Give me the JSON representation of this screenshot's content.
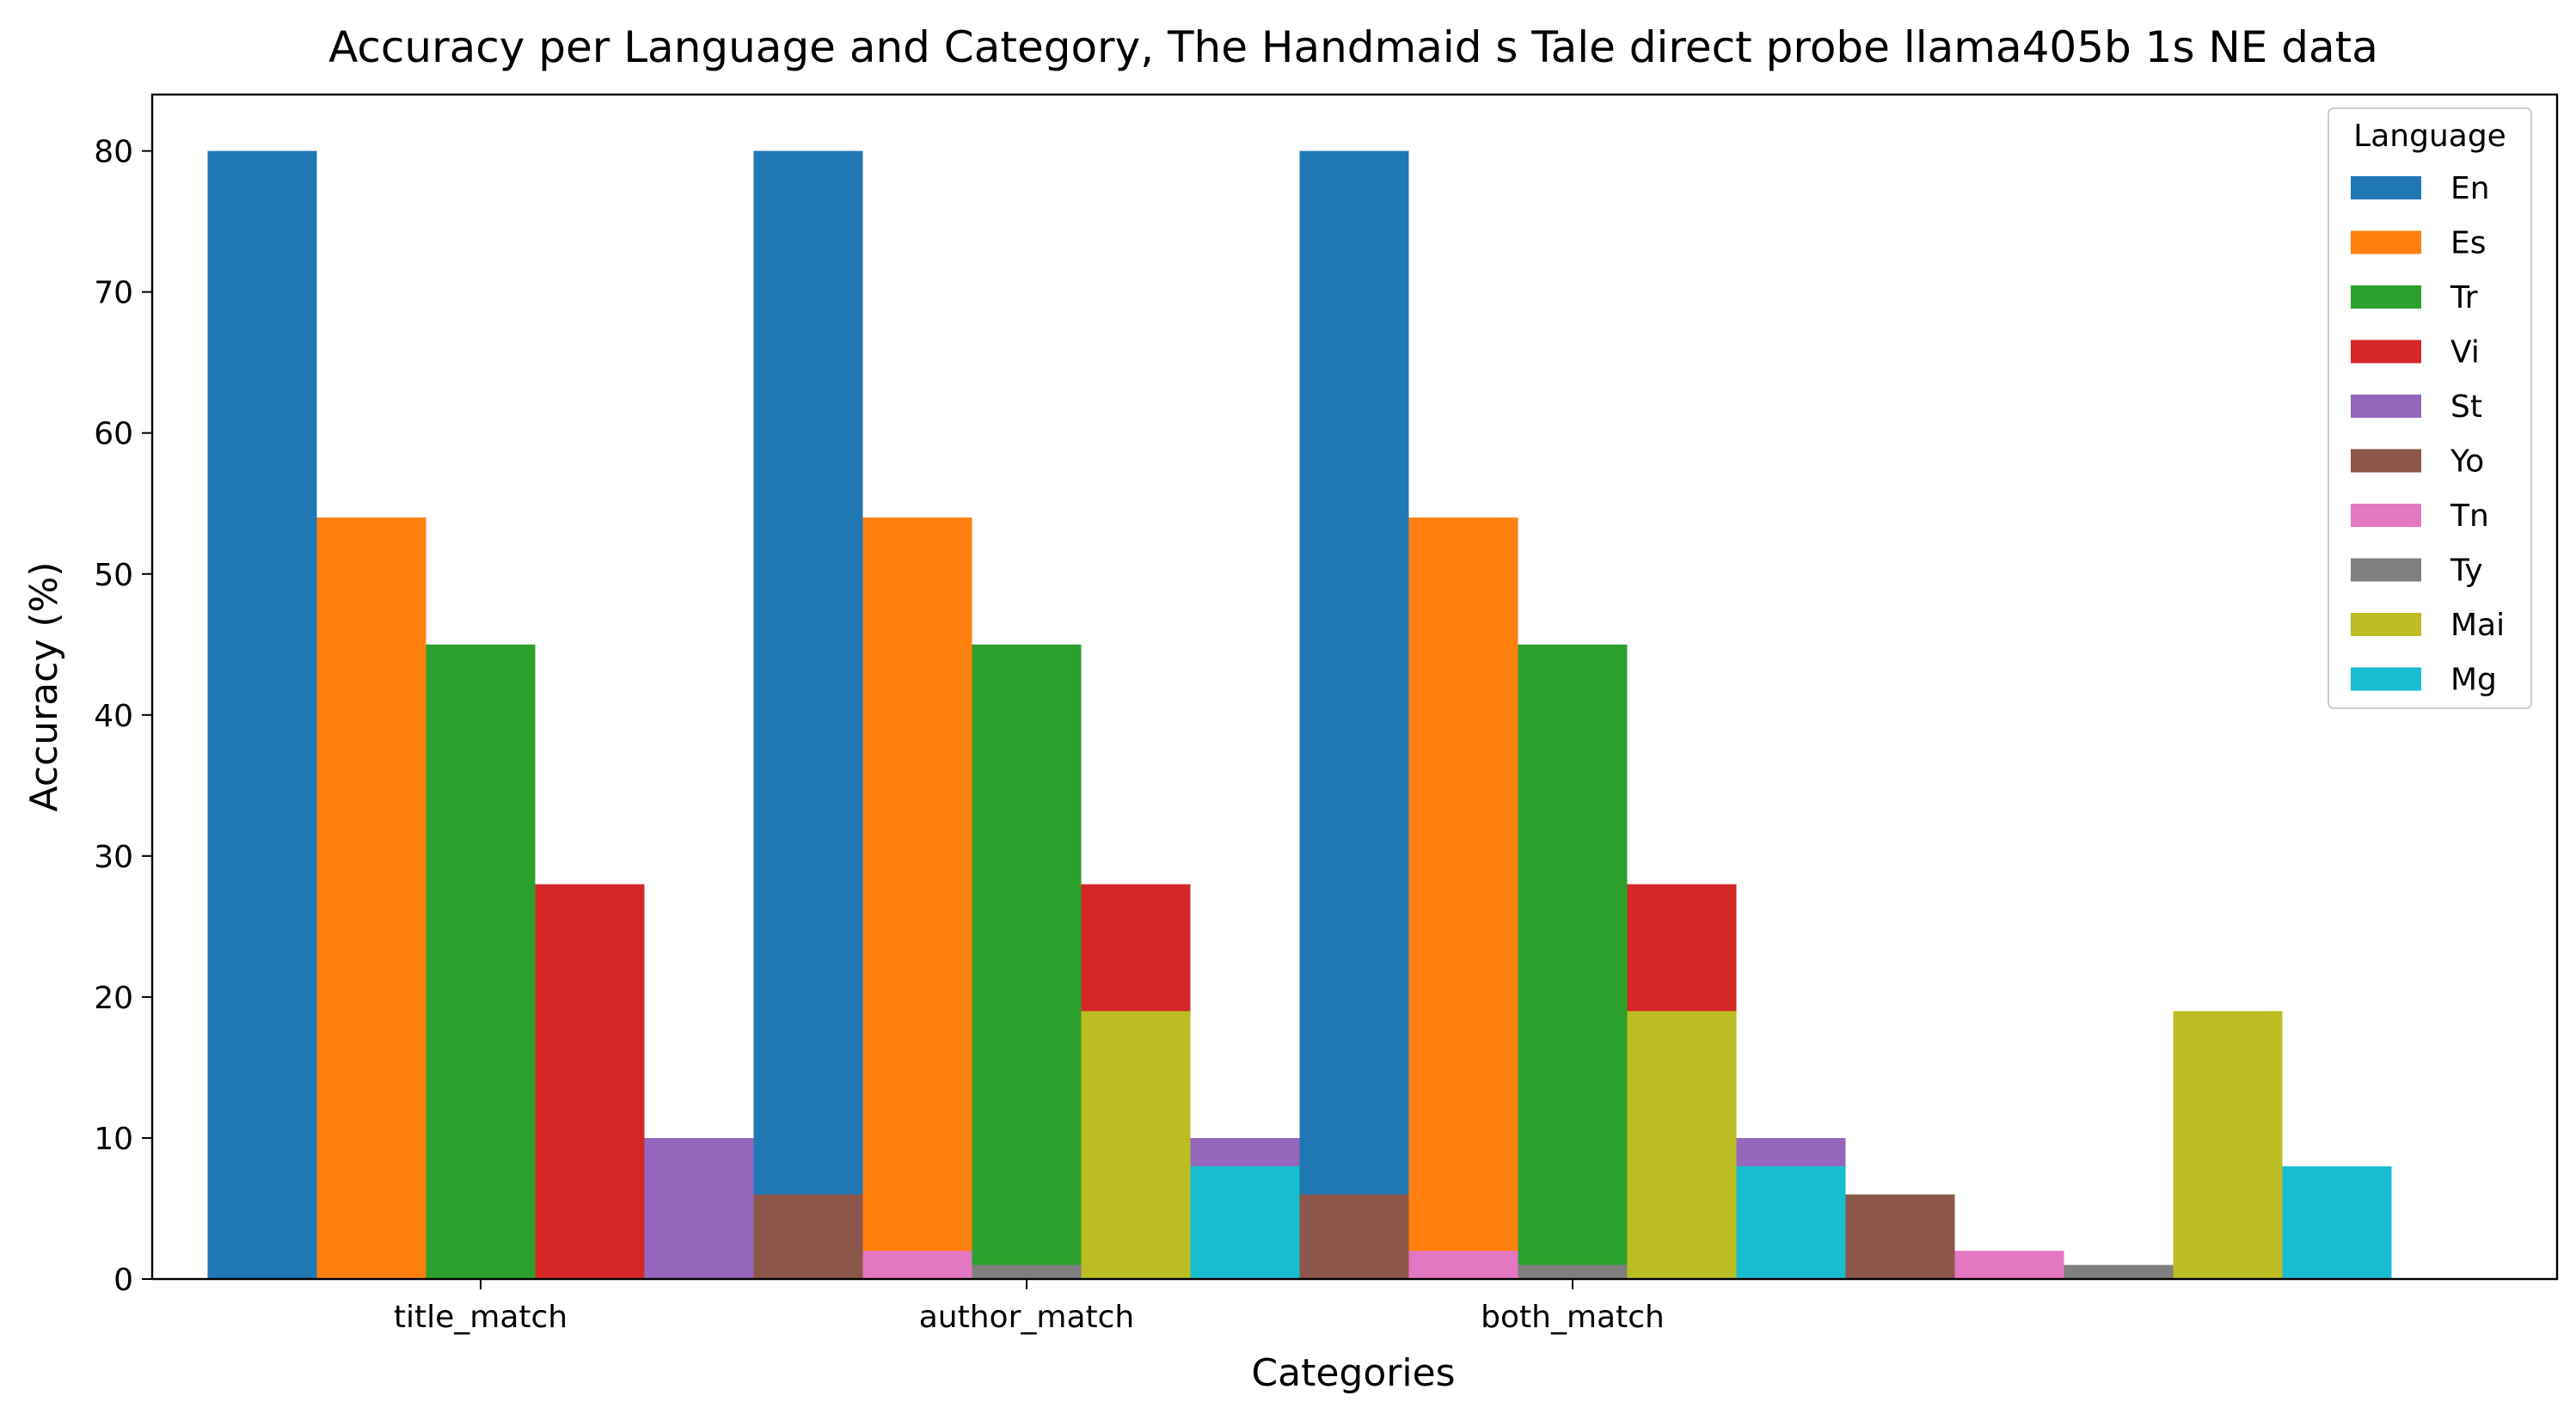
{
  "chart_data": {
    "type": "bar",
    "title": "Accuracy per Language and Category, The Handmaid s Tale direct probe llama405b 1s NE data",
    "xlabel": "Categories",
    "ylabel": "Accuracy (%)",
    "ylim": [
      0,
      84
    ],
    "yticks": [
      0,
      10,
      20,
      30,
      40,
      50,
      60,
      70,
      80
    ],
    "categories": [
      "title_match",
      "author_match",
      "both_match"
    ],
    "grid": false,
    "legend": {
      "title": "Language",
      "placement": "top-right"
    },
    "series": [
      {
        "name": "En",
        "color": "#1f77b4",
        "values": [
          80,
          80,
          80
        ]
      },
      {
        "name": "Es",
        "color": "#ff7f0e",
        "values": [
          54,
          54,
          54
        ]
      },
      {
        "name": "Tr",
        "color": "#2ca02c",
        "values": [
          45,
          45,
          45
        ]
      },
      {
        "name": "Vi",
        "color": "#d62728",
        "values": [
          28,
          28,
          28
        ]
      },
      {
        "name": "St",
        "color": "#9467bd",
        "values": [
          10,
          10,
          10
        ]
      },
      {
        "name": "Yo",
        "color": "#8c564b",
        "values": [
          6,
          6,
          6
        ]
      },
      {
        "name": "Tn",
        "color": "#e377c2",
        "values": [
          2,
          2,
          2
        ]
      },
      {
        "name": "Ty",
        "color": "#7f7f7f",
        "values": [
          1,
          1,
          1
        ]
      },
      {
        "name": "Mai",
        "color": "#bcbd22",
        "values": [
          19,
          19,
          19
        ]
      },
      {
        "name": "Mg",
        "color": "#17becf",
        "values": [
          8,
          8,
          8
        ]
      }
    ]
  }
}
